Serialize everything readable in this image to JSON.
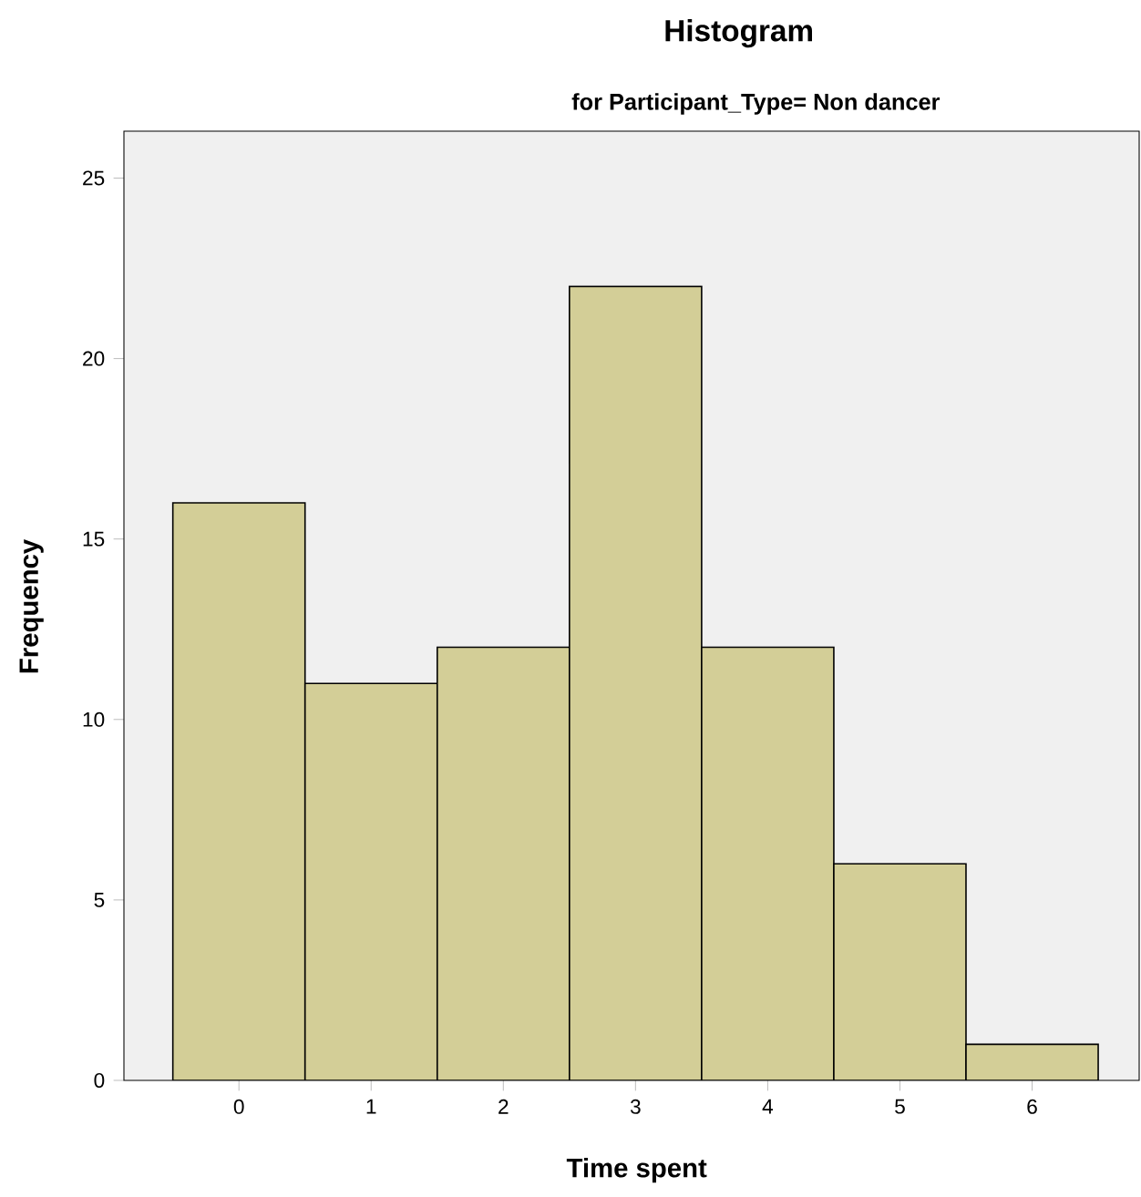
{
  "chart_data": {
    "type": "histogram",
    "title": "Histogram",
    "subtitle": "for Participant_Type= Non dancer",
    "xlabel": "Time spent",
    "ylabel": "Frequency",
    "bins": [
      -0.5,
      0.5,
      1.5,
      2.5,
      3.5,
      4.5,
      5.5,
      6.5
    ],
    "values": [
      16,
      11,
      12,
      22,
      12,
      6,
      1
    ],
    "color": "#d3ce97",
    "xlim": [
      -0.87,
      6.81
    ],
    "ylim": [
      0,
      26.3
    ],
    "xticks": [
      0,
      1,
      2,
      3,
      4,
      5,
      6
    ],
    "yticks": [
      0,
      5,
      10,
      15,
      20,
      25
    ],
    "grid": false
  }
}
